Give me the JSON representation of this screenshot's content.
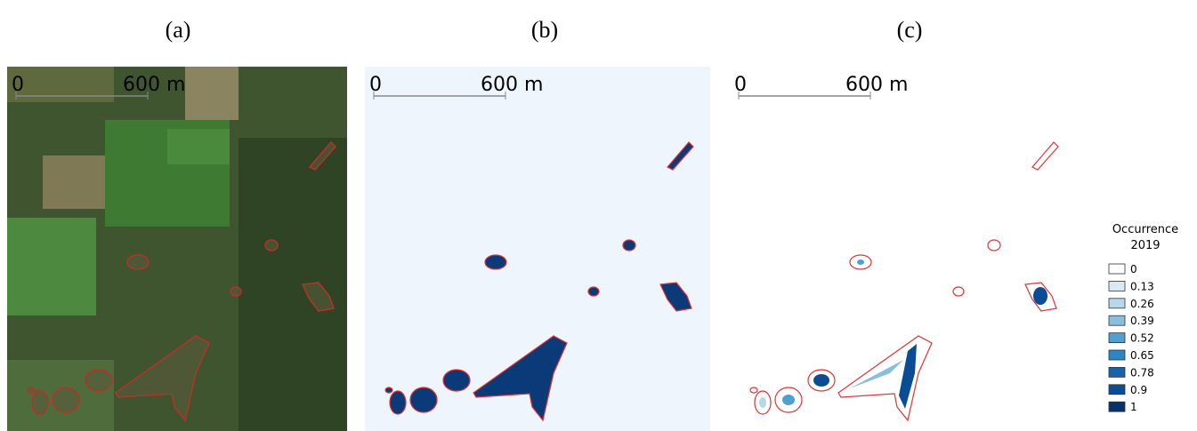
{
  "panels": [
    {
      "label": "(a)",
      "scale_start": "0",
      "scale_end": "600 m"
    },
    {
      "label": "(b)",
      "scale_start": "0",
      "scale_end": "600 m"
    },
    {
      "label": "(c)",
      "scale_start": "0",
      "scale_end": "600 m"
    }
  ],
  "legend": {
    "title": [
      "Occurrence",
      "2019"
    ],
    "items": [
      {
        "label": "0",
        "color": "#ffffff"
      },
      {
        "label": "0.13",
        "color": "#dbe9f6"
      },
      {
        "label": "0.26",
        "color": "#bad6eb"
      },
      {
        "label": "0.39",
        "color": "#89bedc"
      },
      {
        "label": "0.52",
        "color": "#4fa0d0"
      },
      {
        "label": "0.65",
        "color": "#2d86c2"
      },
      {
        "label": "0.78",
        "color": "#1764ab"
      },
      {
        "label": "0.9",
        "color": "#0b4d94"
      },
      {
        "label": "1",
        "color": "#08306b"
      }
    ]
  }
}
